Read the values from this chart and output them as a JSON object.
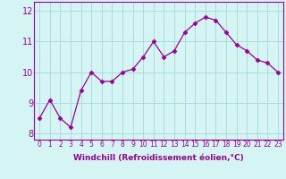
{
  "x": [
    0,
    1,
    2,
    3,
    4,
    5,
    6,
    7,
    8,
    9,
    10,
    11,
    12,
    13,
    14,
    15,
    16,
    17,
    18,
    19,
    20,
    21,
    22,
    23
  ],
  "y": [
    8.5,
    9.1,
    8.5,
    8.2,
    9.4,
    10.0,
    9.7,
    9.7,
    10.0,
    10.1,
    10.5,
    11.0,
    10.5,
    10.7,
    11.3,
    11.6,
    11.8,
    11.7,
    11.3,
    10.9,
    10.7,
    10.4,
    10.3,
    10.0
  ],
  "line_color": "#990099",
  "marker": "D",
  "marker_size": 2.5,
  "bg_color": "#d5f5f5",
  "grid_color": "#aadddd",
  "xlabel": "Windchill (Refroidissement éolien,°C)",
  "ylim": [
    7.8,
    12.3
  ],
  "xlim": [
    -0.5,
    23.5
  ],
  "yticks": [
    8,
    9,
    10,
    11,
    12
  ],
  "xticks": [
    0,
    1,
    2,
    3,
    4,
    5,
    6,
    7,
    8,
    9,
    10,
    11,
    12,
    13,
    14,
    15,
    16,
    17,
    18,
    19,
    20,
    21,
    22,
    23
  ],
  "tick_color": "#990099",
  "label_color": "#990099",
  "font_size_ticks_x": 5.5,
  "font_size_ticks_y": 7,
  "font_size_label": 6.5
}
